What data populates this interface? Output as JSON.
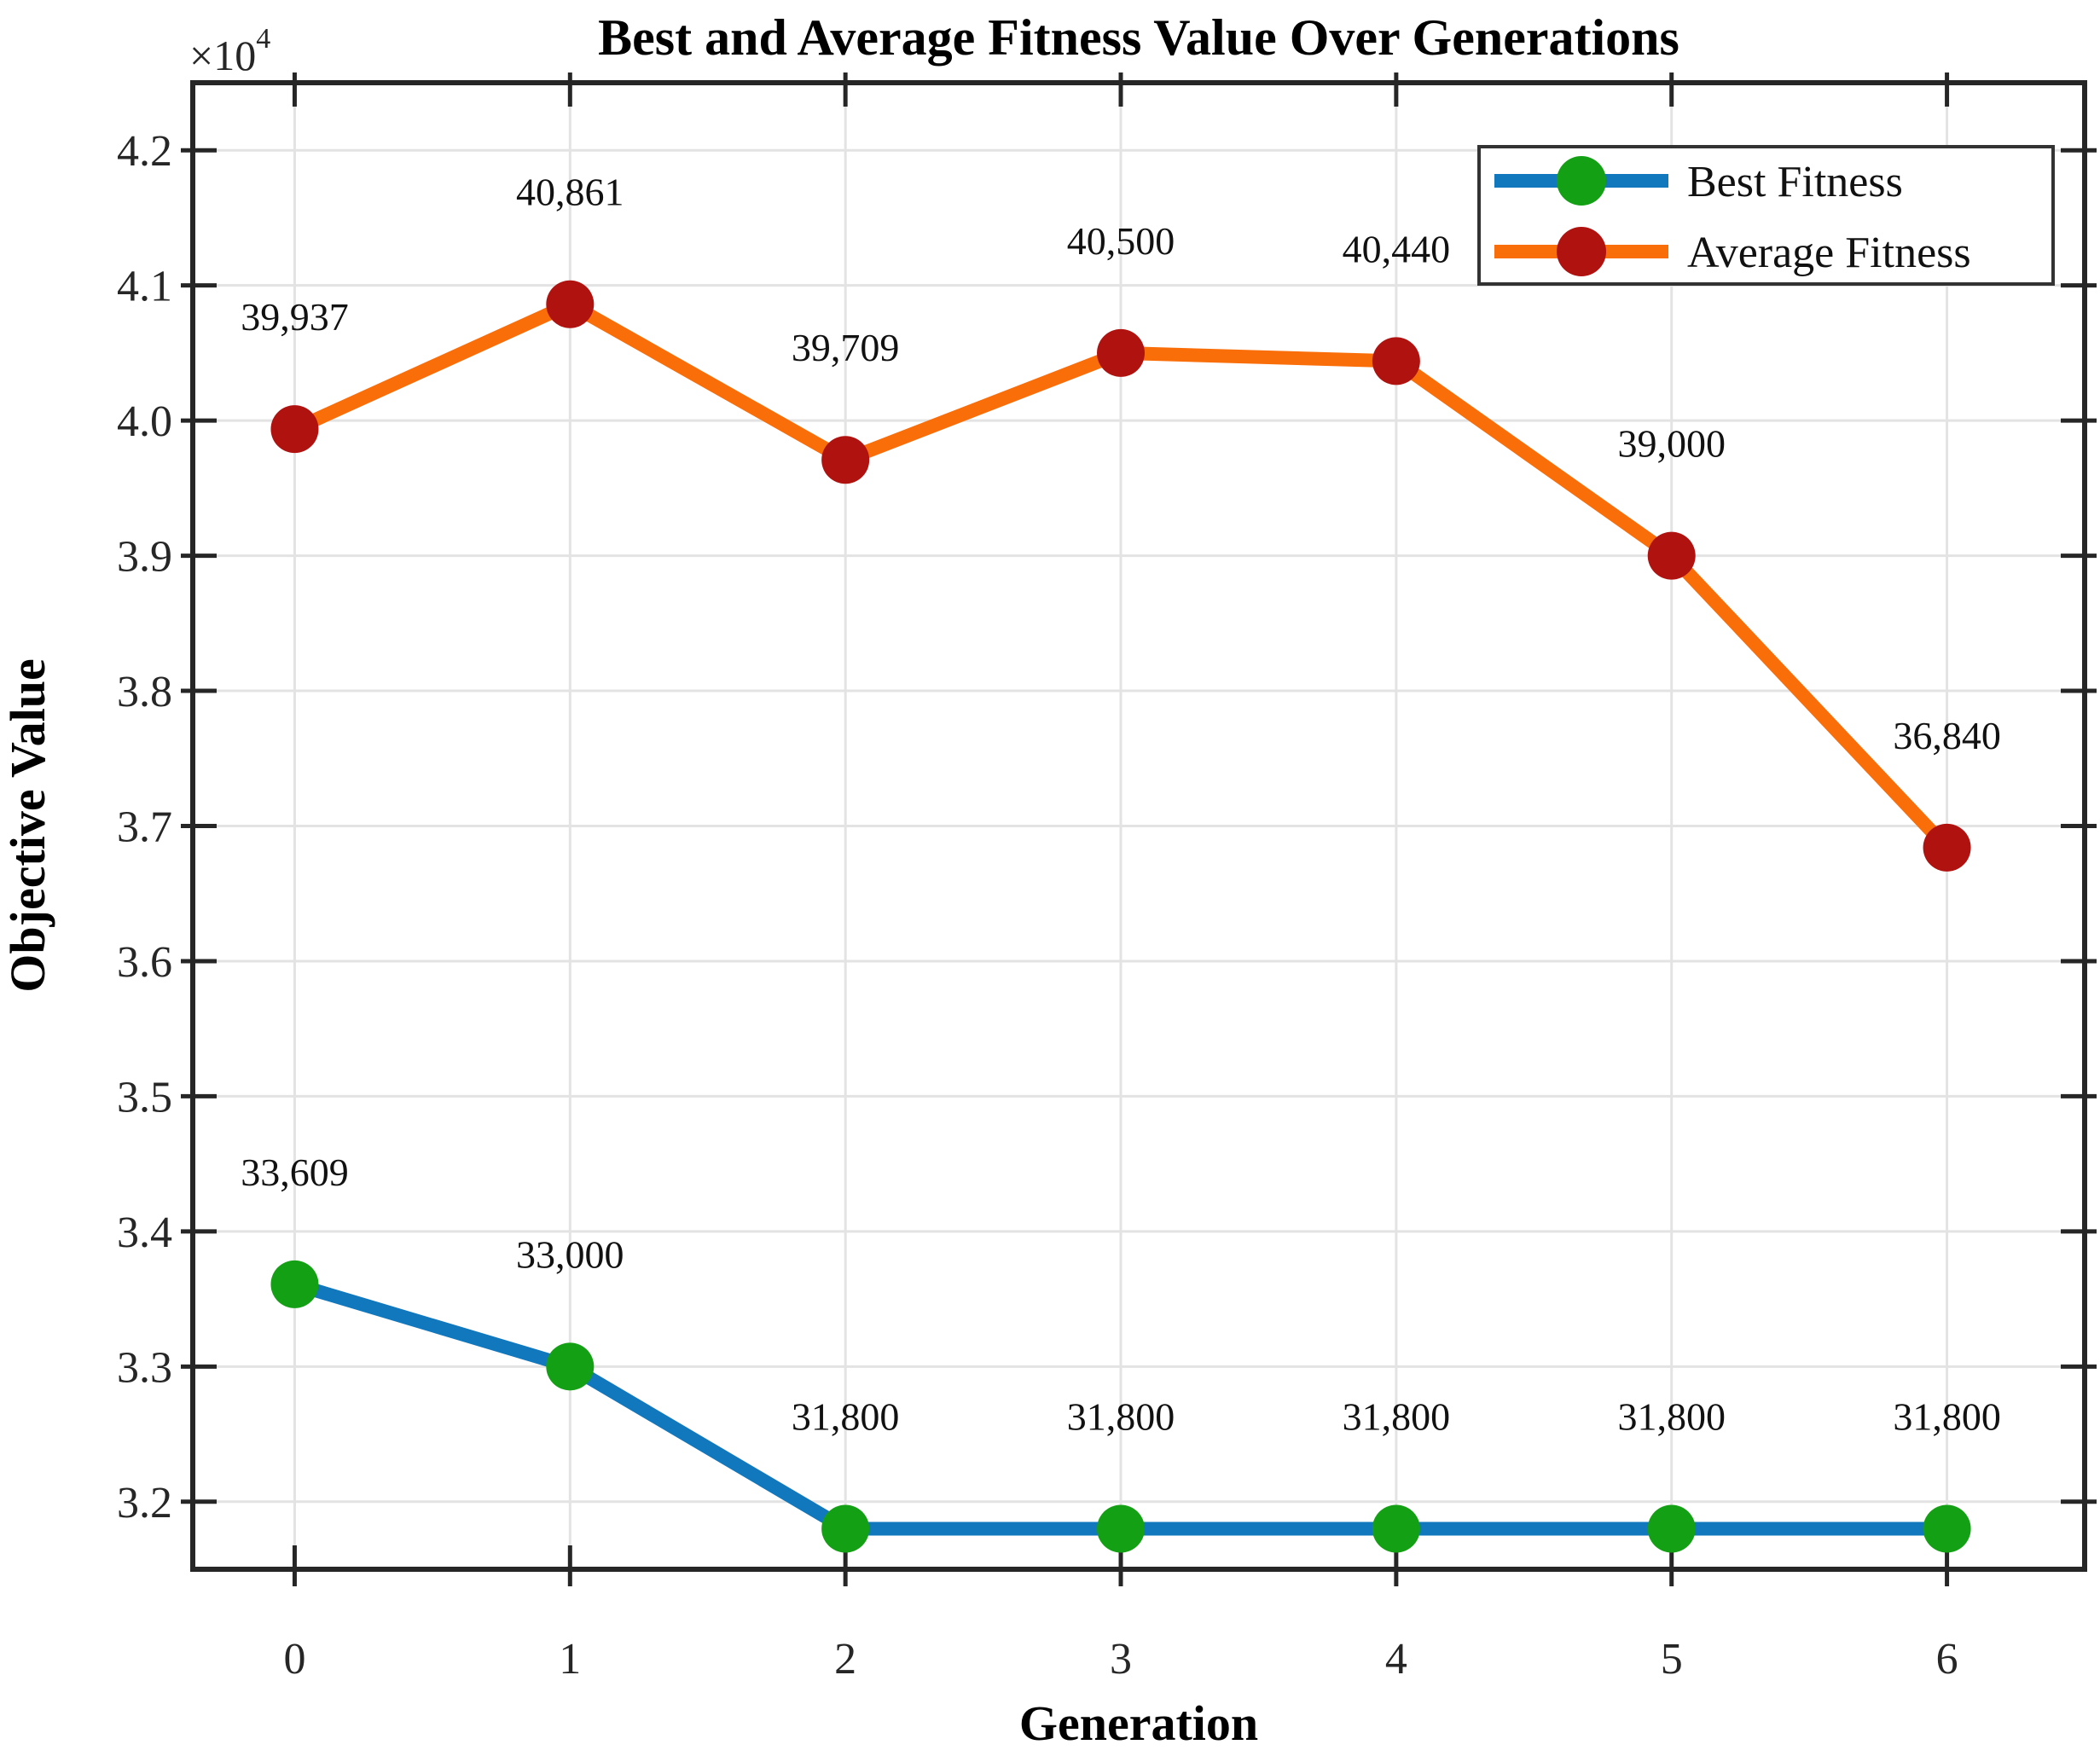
{
  "title": "Best and Average Fitness Value Over Generations",
  "xlabel": "Generation",
  "ylabel": "Objective Value",
  "multiplier": {
    "base": "×10",
    "exp": "4"
  },
  "legend": {
    "items": [
      {
        "label": "Best Fitness"
      },
      {
        "label": "Average Fitness"
      }
    ]
  },
  "colors": {
    "best_line": "#1178BE",
    "best_marker": "#14A014",
    "average_line": "#FA6E0A",
    "average_marker": "#B01210",
    "grid": "#E3E3E3",
    "axis": "#262626"
  },
  "chart_data": {
    "type": "line",
    "title": "Best and Average Fitness Value Over Generations",
    "xlabel": "Generation",
    "ylabel": "Objective Value (×10⁴)",
    "x": [
      0,
      1,
      2,
      3,
      4,
      5,
      6
    ],
    "x_tick_labels": [
      "0",
      "1",
      "2",
      "3",
      "4",
      "5",
      "6"
    ],
    "y_tick_values": [
      32000,
      33000,
      34000,
      35000,
      36000,
      37000,
      38000,
      39000,
      40000,
      41000,
      42000
    ],
    "y_tick_labels": [
      "3.2",
      "3.3",
      "3.4",
      "3.5",
      "3.6",
      "3.7",
      "3.8",
      "3.9",
      "4.0",
      "4.1",
      "4.2"
    ],
    "xlim": [
      -0.37,
      6.5
    ],
    "ylim": [
      31500,
      42500
    ],
    "grid": true,
    "legend_position": "top-right",
    "series": [
      {
        "name": "Best Fitness",
        "line_color": "#1178BE",
        "marker_color": "#14A014",
        "values": [
          33609,
          33000,
          31800,
          31800,
          31800,
          31800,
          31800
        ],
        "point_labels": [
          "33,609",
          "33,000",
          "31,800",
          "31,800",
          "31,800",
          "31,800",
          "31,800"
        ]
      },
      {
        "name": "Average Fitness",
        "line_color": "#FA6E0A",
        "marker_color": "#B01210",
        "values": [
          39937,
          40861,
          39709,
          40500,
          40440,
          39000,
          36840
        ],
        "point_labels": [
          "39,937",
          "40,861",
          "39,709",
          "40,500",
          "40,440",
          "39,000",
          "36,840"
        ]
      }
    ]
  }
}
